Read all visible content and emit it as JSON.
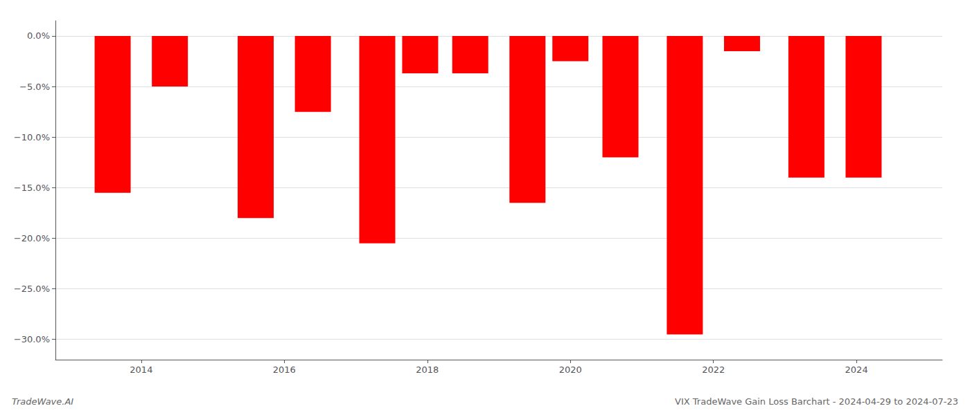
{
  "chart_data": {
    "type": "bar",
    "title": "VIX TradeWave Gain Loss Barchart - 2024-04-29 to 2024-07-23",
    "annotations": [
      "TradeWave.AI"
    ],
    "x": [
      2013.6,
      2014.4,
      2015.6,
      2016.4,
      2017.3,
      2017.9,
      2018.6,
      2019.4,
      2020.0,
      2020.7,
      2021.6,
      2022.4,
      2023.3,
      2024.1
    ],
    "values": [
      -15.5,
      -5.0,
      -18.0,
      -7.5,
      -20.5,
      -3.7,
      -3.7,
      -16.5,
      -2.5,
      -12.0,
      -29.5,
      -1.5,
      -14.0,
      -14.0
    ],
    "color": "#ff0000",
    "xlim": [
      2012.8,
      2025.2
    ],
    "xticks": [
      2014,
      2016,
      2018,
      2020,
      2022,
      2024
    ],
    "ylim": [
      -32,
      1.5
    ],
    "yticks": [
      {
        "value": 0.0,
        "label": "0.0%"
      },
      {
        "value": -5.0,
        "label": "−5.0%"
      },
      {
        "value": -10.0,
        "label": "−10.0%"
      },
      {
        "value": -15.0,
        "label": "−15.0%"
      },
      {
        "value": -20.0,
        "label": "−20.0%"
      },
      {
        "value": -25.0,
        "label": "−25.0%"
      },
      {
        "value": -30.0,
        "label": "−30.0%"
      }
    ],
    "grid": true
  }
}
